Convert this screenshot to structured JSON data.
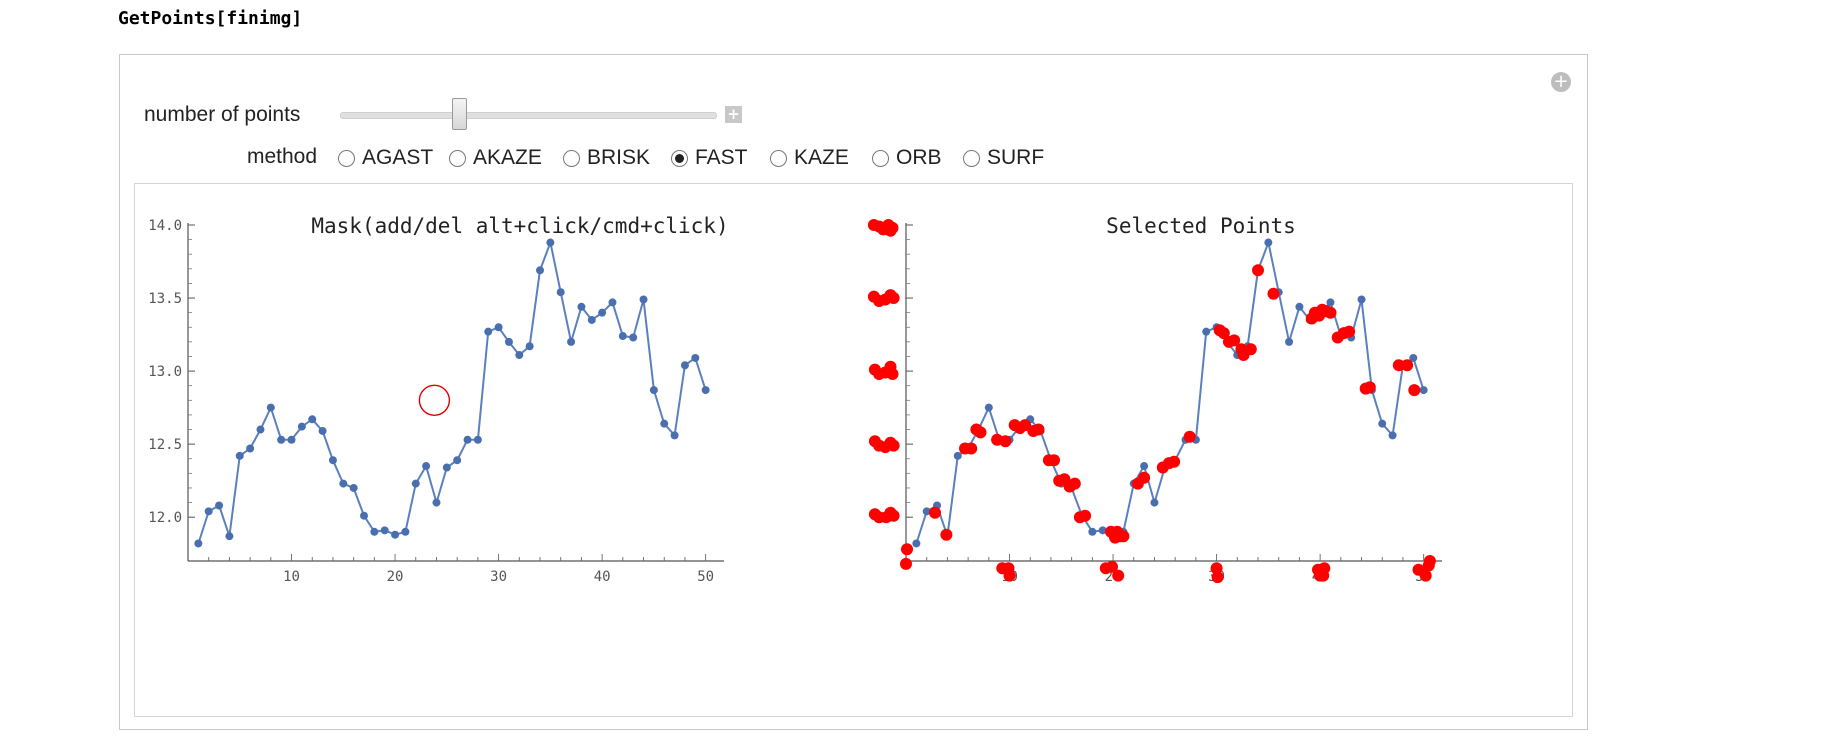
{
  "code_input": "GetPoints[finimg]",
  "controls": {
    "slider_label": "number of points",
    "method_label": "method",
    "methods": [
      "AGAST",
      "AKAZE",
      "BRISK",
      "FAST",
      "KAZE",
      "ORB",
      "SURF"
    ],
    "selected_method": "FAST"
  },
  "icons": {
    "panel_add": "plus-circle-icon",
    "slider_increment": "plus-box-icon"
  },
  "colors": {
    "line": "#5b80be",
    "point": "#4a6fae",
    "selected": "#ff0000",
    "mask_circle": "#e00000"
  },
  "chart_data": [
    {
      "type": "line",
      "title": "Mask(add/del alt+click/cmd+click)",
      "xlim": [
        0,
        51
      ],
      "ylim": [
        11.7,
        14.0
      ],
      "xticks": [
        10,
        20,
        30,
        40,
        50
      ],
      "yticks": [
        12.0,
        12.5,
        13.0,
        13.5,
        14.0
      ],
      "ytick_labels": [
        "12.0",
        "12.5",
        "13.0",
        "13.5",
        "14.0"
      ],
      "x": [
        1,
        2,
        3,
        4,
        5,
        6,
        7,
        8,
        9,
        10,
        11,
        12,
        13,
        14,
        15,
        16,
        17,
        18,
        19,
        20,
        21,
        22,
        23,
        24,
        25,
        26,
        27,
        28,
        29,
        30,
        31,
        32,
        33,
        34,
        35,
        36,
        37,
        38,
        39,
        40,
        41,
        42,
        43,
        44,
        45,
        46,
        47,
        48,
        49,
        50
      ],
      "y": [
        11.82,
        12.04,
        12.08,
        11.87,
        12.42,
        12.47,
        12.6,
        12.75,
        12.53,
        12.53,
        12.62,
        12.67,
        12.59,
        12.39,
        12.23,
        12.2,
        12.01,
        11.9,
        11.91,
        11.88,
        11.9,
        12.23,
        12.35,
        12.1,
        12.34,
        12.39,
        12.53,
        12.53,
        13.27,
        13.3,
        13.2,
        13.11,
        13.17,
        13.69,
        13.88,
        13.54,
        13.2,
        13.44,
        13.35,
        13.4,
        13.47,
        13.24,
        13.23,
        13.49,
        12.87,
        12.64,
        12.56,
        13.04,
        13.09,
        12.87
      ],
      "mask_circle": {
        "x": 23.8,
        "y": 12.8
      }
    },
    {
      "type": "scatter",
      "title": "Selected Points",
      "xlim": [
        0,
        51
      ],
      "ylim": [
        11.7,
        14.0
      ],
      "xticks": [
        10,
        20,
        30,
        40,
        50
      ],
      "yticks": [
        12.0,
        12.5,
        13.0,
        13.5,
        14.0
      ],
      "ytick_labels": [
        "",
        "",
        "",
        "",
        ""
      ],
      "line_x": [
        1,
        2,
        3,
        4,
        5,
        6,
        7,
        8,
        9,
        10,
        11,
        12,
        13,
        14,
        15,
        16,
        17,
        18,
        19,
        20,
        21,
        22,
        23,
        24,
        25,
        26,
        27,
        28,
        29,
        30,
        31,
        32,
        33,
        34,
        35,
        36,
        37,
        38,
        39,
        40,
        41,
        42,
        43,
        44,
        45,
        46,
        47,
        48,
        49,
        50
      ],
      "line_y": [
        11.82,
        12.04,
        12.08,
        11.87,
        12.42,
        12.47,
        12.6,
        12.75,
        12.53,
        12.53,
        12.62,
        12.67,
        12.59,
        12.39,
        12.23,
        12.2,
        12.01,
        11.9,
        11.91,
        11.88,
        11.9,
        12.23,
        12.35,
        12.1,
        12.34,
        12.39,
        12.53,
        12.53,
        13.27,
        13.3,
        13.2,
        13.11,
        13.17,
        13.69,
        13.88,
        13.54,
        13.2,
        13.44,
        13.35,
        13.4,
        13.47,
        13.24,
        13.23,
        13.49,
        12.87,
        12.64,
        12.56,
        13.04,
        13.09,
        12.87
      ],
      "selected_points": [
        [
          2.8,
          12.03
        ],
        [
          3.9,
          11.88
        ],
        [
          5.7,
          12.47
        ],
        [
          6.3,
          12.47
        ],
        [
          6.8,
          12.6
        ],
        [
          7.2,
          12.58
        ],
        [
          8.8,
          12.53
        ],
        [
          9.6,
          12.52
        ],
        [
          10.5,
          12.63
        ],
        [
          11.0,
          12.61
        ],
        [
          11.5,
          12.63
        ],
        [
          12.3,
          12.59
        ],
        [
          12.8,
          12.6
        ],
        [
          13.8,
          12.39
        ],
        [
          14.3,
          12.39
        ],
        [
          14.8,
          12.25
        ],
        [
          15.3,
          12.26
        ],
        [
          15.8,
          12.21
        ],
        [
          16.3,
          12.23
        ],
        [
          16.8,
          12.0
        ],
        [
          17.3,
          12.01
        ],
        [
          19.8,
          11.9
        ],
        [
          20.2,
          11.86
        ],
        [
          20.7,
          11.87
        ],
        [
          20.4,
          11.9
        ],
        [
          21.0,
          11.87
        ],
        [
          22.4,
          12.23
        ],
        [
          23.0,
          12.27
        ],
        [
          24.8,
          12.34
        ],
        [
          25.4,
          12.37
        ],
        [
          25.9,
          12.38
        ],
        [
          27.4,
          12.55
        ],
        [
          30.3,
          13.28
        ],
        [
          30.7,
          13.26
        ],
        [
          31.2,
          13.2
        ],
        [
          31.7,
          13.21
        ],
        [
          32.4,
          13.15
        ],
        [
          32.6,
          13.11
        ],
        [
          33.3,
          13.15
        ],
        [
          34.0,
          13.69
        ],
        [
          35.5,
          13.53
        ],
        [
          39.2,
          13.36
        ],
        [
          39.5,
          13.4
        ],
        [
          39.9,
          13.38
        ],
        [
          40.2,
          13.42
        ],
        [
          40.6,
          13.41
        ],
        [
          41.0,
          13.4
        ],
        [
          41.7,
          13.23
        ],
        [
          42.3,
          13.26
        ],
        [
          42.8,
          13.27
        ],
        [
          44.4,
          12.88
        ],
        [
          44.8,
          12.89
        ],
        [
          47.6,
          13.04
        ],
        [
          48.4,
          13.04
        ],
        [
          49.1,
          12.87
        ],
        [
          -3.1,
          14.0
        ],
        [
          -2.6,
          13.99
        ],
        [
          -2.2,
          13.97
        ],
        [
          -1.7,
          14.0
        ],
        [
          -1.3,
          13.98
        ],
        [
          -1.5,
          13.96
        ],
        [
          -3.1,
          13.51
        ],
        [
          -2.6,
          13.48
        ],
        [
          -2.0,
          13.49
        ],
        [
          -1.5,
          13.52
        ],
        [
          -1.2,
          13.5
        ],
        [
          -3.0,
          13.01
        ],
        [
          -2.6,
          12.98
        ],
        [
          -2.0,
          12.99
        ],
        [
          -1.5,
          13.03
        ],
        [
          -1.3,
          12.98
        ],
        [
          -3.0,
          12.52
        ],
        [
          -2.6,
          12.49
        ],
        [
          -2.0,
          12.48
        ],
        [
          -1.5,
          12.51
        ],
        [
          -1.2,
          12.49
        ],
        [
          -3.0,
          12.02
        ],
        [
          -2.6,
          12.0
        ],
        [
          -1.9,
          12.0
        ],
        [
          -1.5,
          12.03
        ],
        [
          -1.2,
          12.01
        ],
        [
          0.1,
          11.78
        ],
        [
          0.0,
          11.68
        ],
        [
          9.3,
          11.65
        ],
        [
          9.9,
          11.65
        ],
        [
          10.0,
          11.6
        ],
        [
          19.3,
          11.65
        ],
        [
          19.9,
          11.66
        ],
        [
          20.5,
          11.6
        ],
        [
          30.0,
          11.65
        ],
        [
          30.1,
          11.59
        ],
        [
          39.8,
          11.64
        ],
        [
          40.4,
          11.65
        ],
        [
          40.0,
          11.6
        ],
        [
          40.3,
          11.6
        ],
        [
          49.5,
          11.64
        ],
        [
          50.2,
          11.6
        ],
        [
          50.5,
          11.67
        ],
        [
          50.6,
          11.7
        ]
      ]
    }
  ]
}
